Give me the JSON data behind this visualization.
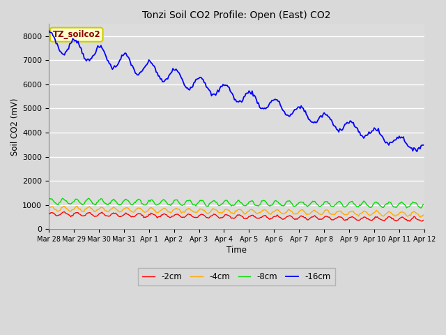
{
  "title": "Tonzi Soil CO2 Profile: Open (East) CO2",
  "xlabel": "Time",
  "ylabel": "Soil CO2 (mV)",
  "legend_label": "TZ_soilco2",
  "series_labels": [
    "-2cm",
    "-4cm",
    "-8cm",
    "-16cm"
  ],
  "series_colors": [
    "#ff0000",
    "#ffaa00",
    "#00dd00",
    "#0000ff"
  ],
  "ylim": [
    0,
    8500
  ],
  "background_color": "#d9d9d9",
  "plot_bg_color": "#dcdcdc",
  "grid_color": "#ffffff",
  "yticks": [
    0,
    1000,
    2000,
    3000,
    4000,
    5000,
    6000,
    7000,
    8000
  ],
  "x_tick_labels": [
    "Mar 28",
    "Mar 29",
    "Mar 30",
    "Mar 31",
    "Apr 1",
    "Apr 2",
    "Apr 3",
    "Apr 4",
    "Apr 5",
    "Apr 6",
    "Apr 7",
    "Apr 8",
    "Apr 9",
    "Apr 10",
    "Apr 11",
    "Apr 12"
  ],
  "num_days": 15,
  "points_per_day": 24
}
